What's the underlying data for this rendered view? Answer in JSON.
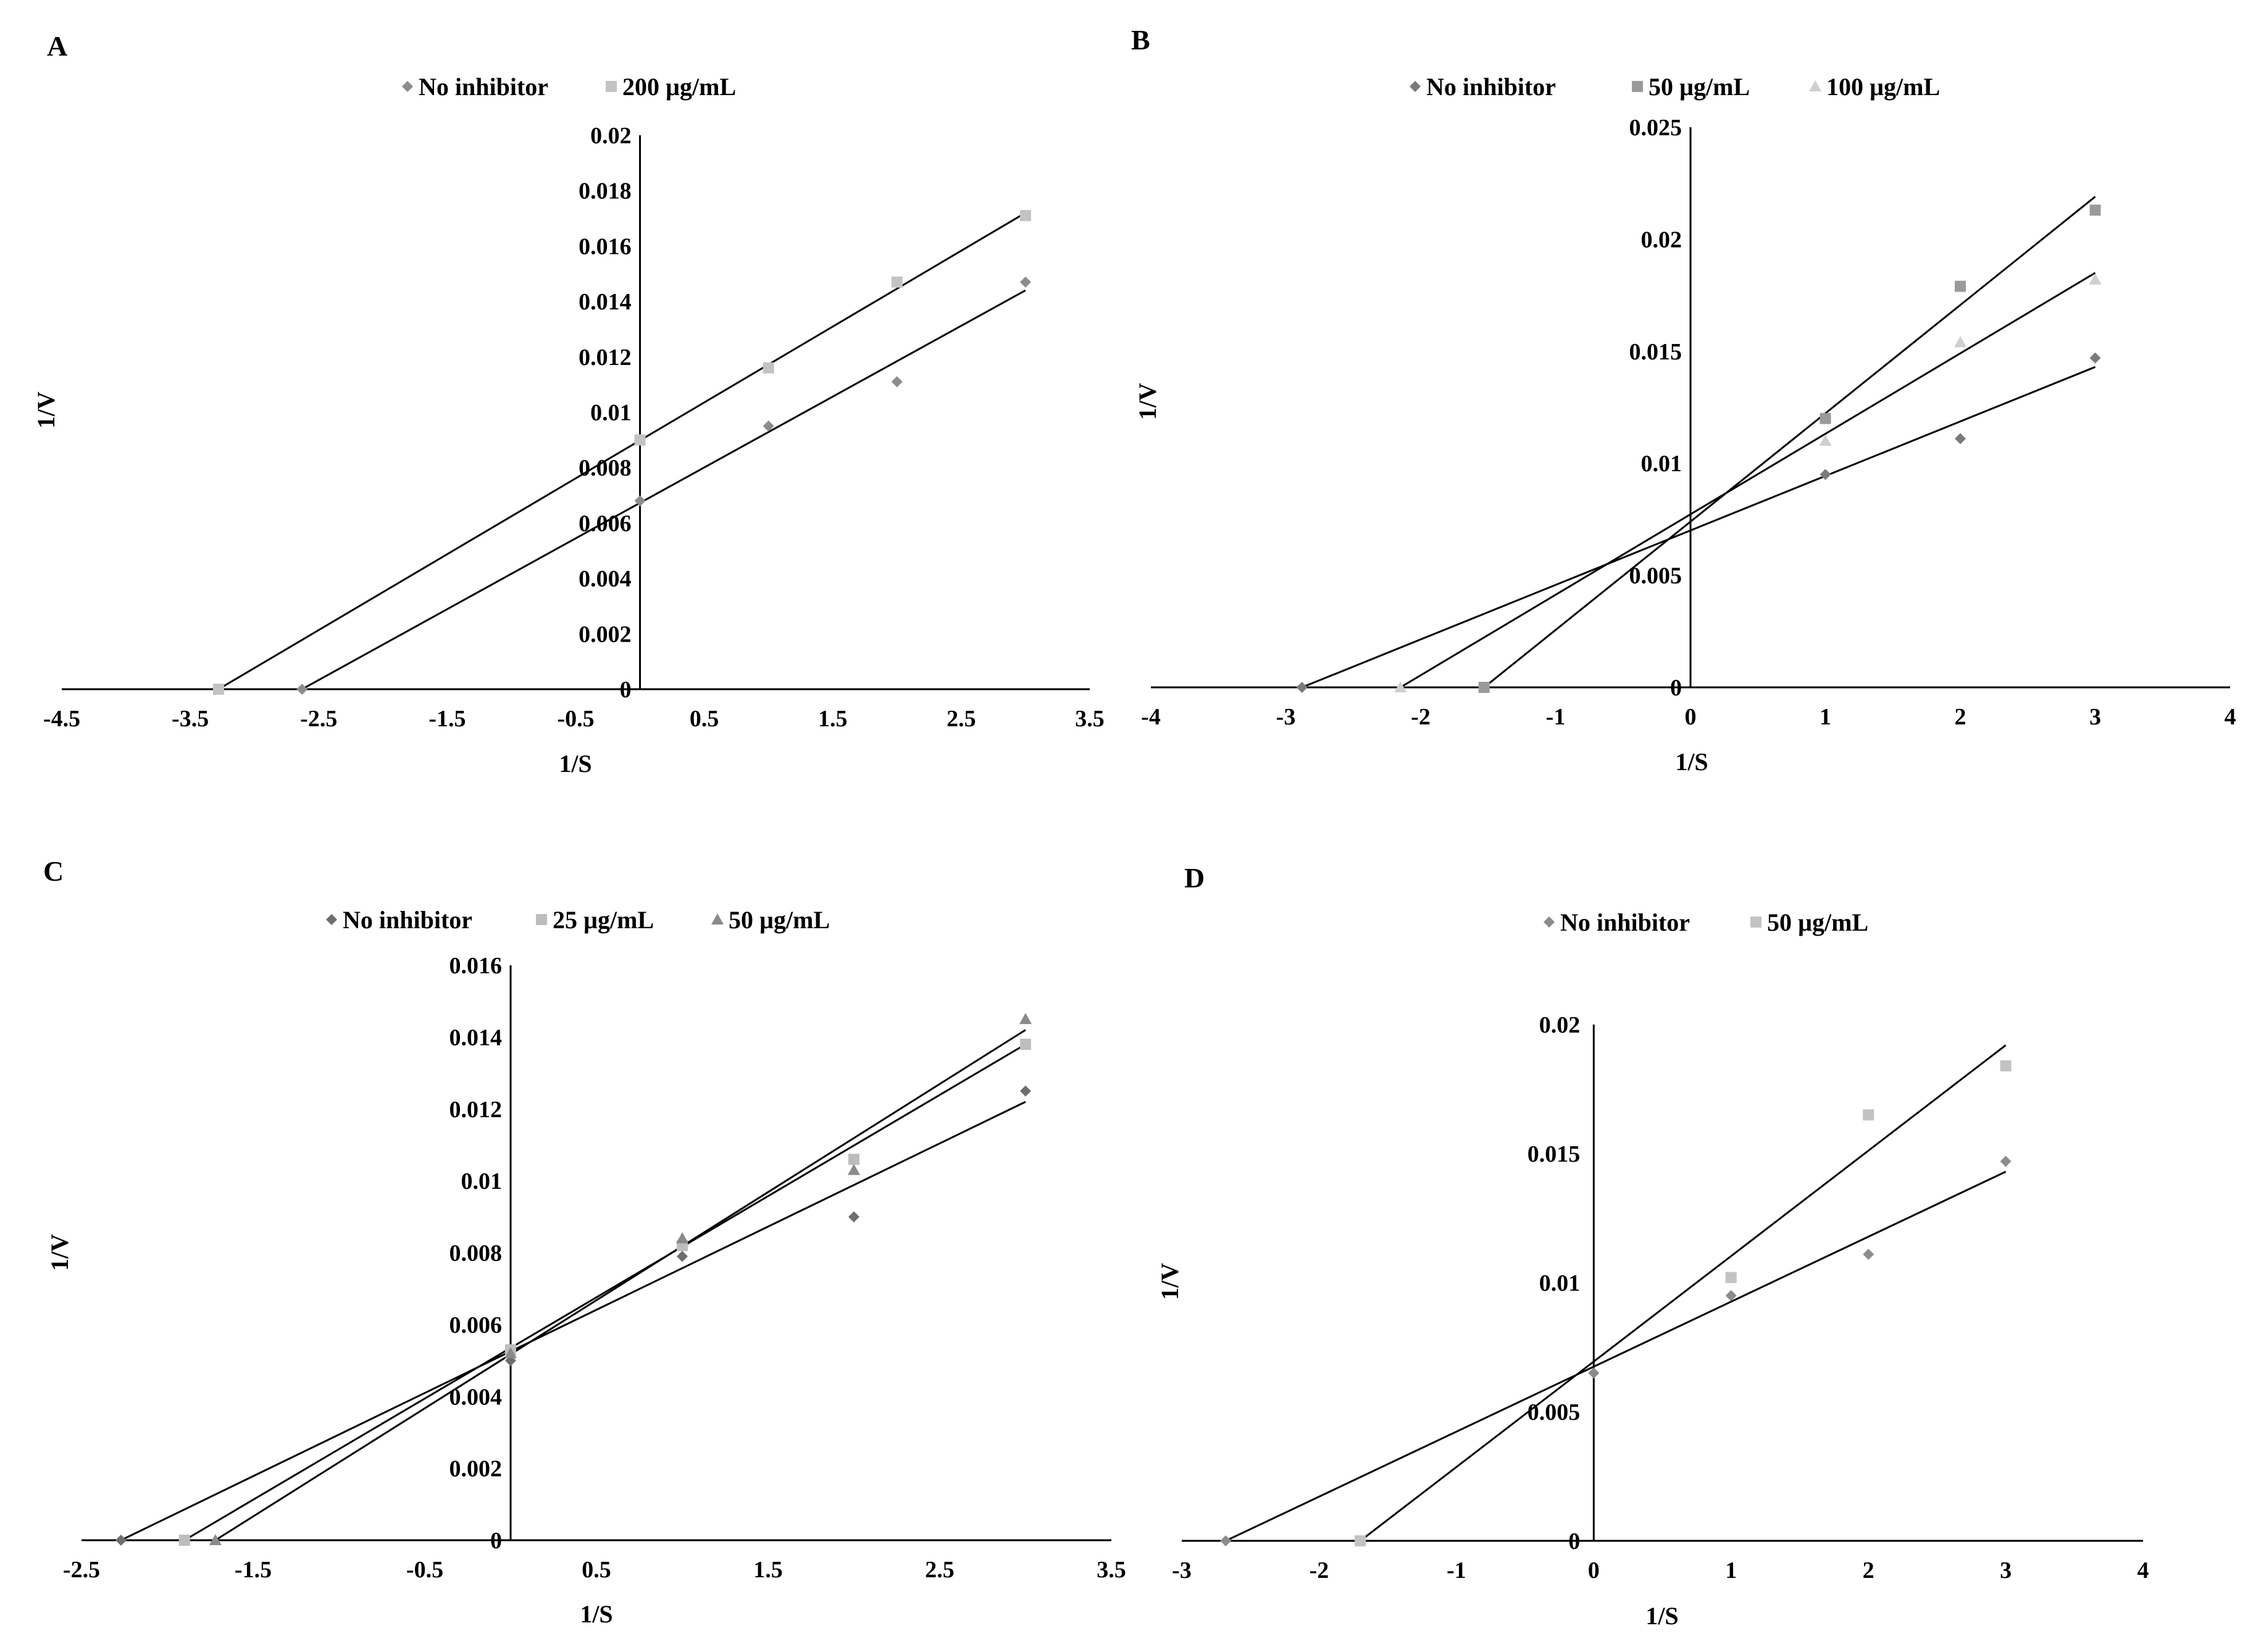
{
  "figure": {
    "description_panels": [
      "A",
      "B",
      "C",
      "D"
    ]
  },
  "chart_data": [
    {
      "panel": "A",
      "type": "scatter",
      "title": "",
      "xlabel": "1/S",
      "ylabel": "1/V",
      "xlim": [
        -4.5,
        3.5
      ],
      "ylim": [
        0,
        0.02
      ],
      "xticks": [
        -4.5,
        -3.5,
        -2.5,
        -1.5,
        -0.5,
        0.5,
        1.5,
        2.5,
        3.5
      ],
      "yticks": [
        0,
        0.002,
        0.004,
        0.006,
        0.008,
        0.01,
        0.012,
        0.014,
        0.016,
        0.018,
        0.02
      ],
      "legend": "top",
      "series": [
        {
          "name": "No inhibitor",
          "marker": "diamond",
          "color": "#8c8c8c",
          "points": [
            [
              -2.63,
              0
            ],
            [
              0,
              0.0068
            ],
            [
              1,
              0.0095
            ],
            [
              2,
              0.0111
            ],
            [
              3,
              0.0147
            ]
          ],
          "line": [
            [
              -2.63,
              0
            ],
            [
              3,
              0.0144
            ]
          ]
        },
        {
          "name": "200 µg/mL",
          "marker": "square",
          "color": "#c3c3c3",
          "points": [
            [
              -3.28,
              0
            ],
            [
              0,
              0.009
            ],
            [
              1,
              0.0116
            ],
            [
              2,
              0.0147
            ],
            [
              3,
              0.0171
            ]
          ],
          "line": [
            [
              -3.28,
              0
            ],
            [
              3,
              0.0172
            ]
          ]
        }
      ]
    },
    {
      "panel": "B",
      "type": "scatter",
      "title": "",
      "xlabel": "1/S",
      "ylabel": "1/V",
      "xlim": [
        -4,
        4
      ],
      "ylim": [
        0,
        0.025
      ],
      "xticks": [
        -4,
        -3,
        -2,
        -1,
        0,
        1,
        2,
        3,
        4
      ],
      "yticks": [
        0,
        0.005,
        0.01,
        0.015,
        0.02,
        0.025
      ],
      "legend": "top",
      "series": [
        {
          "name": "No inhibitor",
          "marker": "diamond",
          "color": "#7a7a7a",
          "points": [
            [
              -2.88,
              0
            ],
            [
              1,
              0.0095
            ],
            [
              2,
              0.0111
            ],
            [
              3,
              0.0147
            ]
          ],
          "line": [
            [
              -2.88,
              0
            ],
            [
              3,
              0.0143
            ]
          ]
        },
        {
          "name": "50 µg/mL",
          "marker": "square",
          "color": "#9a9a9a",
          "points": [
            [
              -1.53,
              0
            ],
            [
              1,
              0.012
            ],
            [
              2,
              0.0179
            ],
            [
              3,
              0.0213
            ]
          ],
          "line": [
            [
              -1.53,
              0
            ],
            [
              3,
              0.0219
            ]
          ]
        },
        {
          "name": "100 µg/mL",
          "marker": "triangle",
          "color": "#cfcfcf",
          "points": [
            [
              -2.15,
              0
            ],
            [
              1,
              0.011
            ],
            [
              2,
              0.0154
            ],
            [
              3,
              0.0182
            ]
          ],
          "line": [
            [
              -2.15,
              0
            ],
            [
              3,
              0.0185
            ]
          ]
        }
      ]
    },
    {
      "panel": "C",
      "type": "scatter",
      "title": "",
      "xlabel": "1/S",
      "ylabel": "1/V",
      "xlim": [
        -2.5,
        3.5
      ],
      "ylim": [
        0,
        0.016
      ],
      "xticks": [
        -2.5,
        -1.5,
        -0.5,
        0.5,
        1.5,
        2.5,
        3.5
      ],
      "yticks": [
        0,
        0.002,
        0.004,
        0.006,
        0.008,
        0.01,
        0.012,
        0.014,
        0.016
      ],
      "legend": "top",
      "series": [
        {
          "name": "No inhibitor",
          "marker": "diamond",
          "color": "#6e6e6e",
          "points": [
            [
              -2.27,
              0
            ],
            [
              0,
              0.005
            ],
            [
              1,
              0.0079
            ],
            [
              2,
              0.009
            ],
            [
              3,
              0.0125
            ]
          ],
          "line": [
            [
              -2.27,
              0
            ],
            [
              3,
              0.0122
            ]
          ]
        },
        {
          "name": "25 µg/mL",
          "marker": "square",
          "color": "#bdbdbd",
          "points": [
            [
              -1.9,
              0
            ],
            [
              0,
              0.0053
            ],
            [
              1,
              0.0082
            ],
            [
              2,
              0.0106
            ],
            [
              3,
              0.0138
            ]
          ],
          "line": [
            [
              -1.9,
              0
            ],
            [
              3,
              0.0138
            ]
          ]
        },
        {
          "name": "50 µg/mL",
          "marker": "triangle",
          "color": "#8a8a8a",
          "points": [
            [
              -1.72,
              0
            ],
            [
              0,
              0.0052
            ],
            [
              1,
              0.0084
            ],
            [
              2,
              0.0103
            ],
            [
              3,
              0.0145
            ]
          ],
          "line": [
            [
              -1.72,
              0
            ],
            [
              3,
              0.0142
            ]
          ]
        }
      ]
    },
    {
      "panel": "D",
      "type": "scatter",
      "title": "",
      "xlabel": "1/S",
      "ylabel": "1/V",
      "xlim": [
        -3,
        4
      ],
      "ylim": [
        0,
        0.02
      ],
      "xticks": [
        -3,
        -2,
        -1,
        0,
        1,
        2,
        3,
        4
      ],
      "yticks": [
        0,
        0.005,
        0.01,
        0.015,
        0.02
      ],
      "legend": "top",
      "series": [
        {
          "name": "No inhibitor",
          "marker": "diamond",
          "color": "#8c8c8c",
          "points": [
            [
              -2.68,
              0
            ],
            [
              0,
              0.0065
            ],
            [
              1,
              0.0095
            ],
            [
              2,
              0.0111
            ],
            [
              3,
              0.0147
            ]
          ],
          "line": [
            [
              -2.68,
              0
            ],
            [
              3,
              0.0143
            ]
          ]
        },
        {
          "name": "50 µg/mL",
          "marker": "square",
          "color": "#c3c3c3",
          "points": [
            [
              -1.7,
              0
            ],
            [
              1,
              0.0102
            ],
            [
              2,
              0.0165
            ],
            [
              3,
              0.0184
            ]
          ],
          "line": [
            [
              -1.7,
              0
            ],
            [
              3,
              0.0192
            ]
          ]
        }
      ]
    }
  ]
}
